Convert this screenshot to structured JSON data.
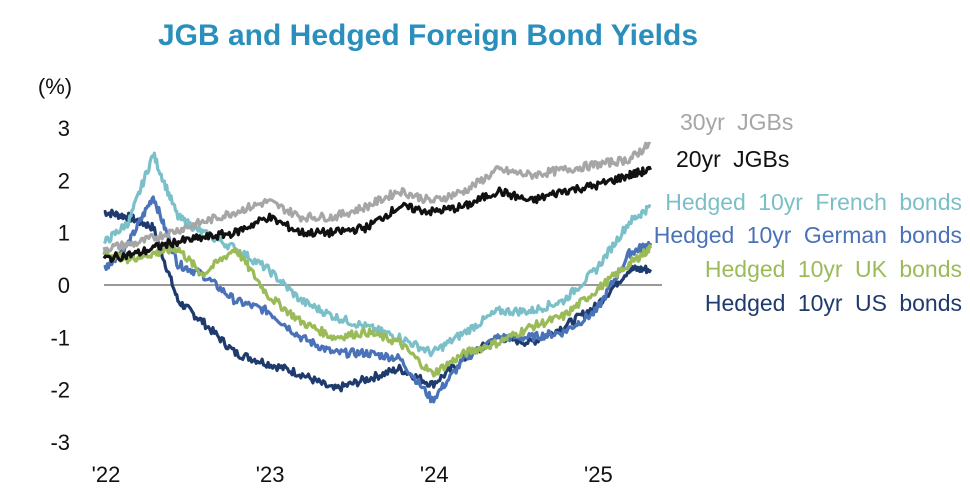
{
  "chart_data": {
    "type": "line",
    "title": "JGB and Hedged Foreign Bond Yields",
    "ylabel": "(%)",
    "ylim": [
      -3,
      3
    ],
    "yticks": [
      "3",
      "2",
      "1",
      "0",
      "-1",
      "-2",
      "-3"
    ],
    "xticks": [
      "'22",
      "'23",
      "'24",
      "'25"
    ],
    "xlim": [
      2022.0,
      2025.4
    ],
    "zero_line": true,
    "legend": "direct labels at right end of lines",
    "colors": {
      "title": "#2a8fbd",
      "zero_line": "#999999"
    },
    "series": [
      {
        "name": "30yr JGBs",
        "color": "#a6a6a6",
        "x": [
          2022.0,
          2022.2,
          2022.4,
          2022.6,
          2022.8,
          2023.0,
          2023.2,
          2023.4,
          2023.6,
          2023.8,
          2024.0,
          2024.2,
          2024.4,
          2024.6,
          2024.8,
          2025.0,
          2025.2,
          2025.33
        ],
        "values": [
          0.7,
          0.8,
          1.0,
          1.2,
          1.4,
          1.6,
          1.3,
          1.3,
          1.5,
          1.8,
          1.6,
          1.8,
          2.2,
          2.1,
          2.2,
          2.3,
          2.4,
          2.7
        ]
      },
      {
        "name": "20yr JGBs",
        "color": "#111111",
        "x": [
          2022.0,
          2022.2,
          2022.4,
          2022.6,
          2022.8,
          2023.0,
          2023.2,
          2023.4,
          2023.6,
          2023.8,
          2024.0,
          2024.2,
          2024.4,
          2024.6,
          2024.8,
          2025.0,
          2025.2,
          2025.33
        ],
        "values": [
          0.5,
          0.6,
          0.8,
          0.9,
          1.0,
          1.3,
          1.0,
          1.0,
          1.1,
          1.5,
          1.4,
          1.5,
          1.8,
          1.6,
          1.8,
          1.9,
          2.1,
          2.2
        ]
      },
      {
        "name": "Hedged 10yr French bonds",
        "color": "#7bbfc8",
        "x": [
          2022.0,
          2022.15,
          2022.3,
          2022.45,
          2022.6,
          2022.8,
          2023.0,
          2023.2,
          2023.4,
          2023.6,
          2023.8,
          2024.0,
          2024.2,
          2024.4,
          2024.6,
          2024.8,
          2025.0,
          2025.2,
          2025.33
        ],
        "values": [
          0.8,
          1.2,
          2.5,
          1.3,
          1.0,
          0.7,
          0.3,
          -0.3,
          -0.6,
          -0.8,
          -1.0,
          -1.3,
          -0.9,
          -0.5,
          -0.5,
          -0.3,
          0.3,
          1.2,
          1.5
        ]
      },
      {
        "name": "Hedged 10yr German bonds",
        "color": "#4a72b8",
        "x": [
          2022.0,
          2022.15,
          2022.3,
          2022.45,
          2022.6,
          2022.8,
          2023.0,
          2023.2,
          2023.4,
          2023.6,
          2023.8,
          2024.0,
          2024.2,
          2024.4,
          2024.6,
          2024.8,
          2025.0,
          2025.2,
          2025.33
        ],
        "values": [
          0.3,
          0.8,
          1.7,
          0.4,
          0.2,
          -0.3,
          -0.5,
          -1.0,
          -1.3,
          -1.3,
          -1.4,
          -2.2,
          -1.4,
          -1.0,
          -1.0,
          -0.9,
          -0.5,
          0.6,
          0.8
        ]
      },
      {
        "name": "Hedged 10yr UK bonds",
        "color": "#9bbb59",
        "x": [
          2022.0,
          2022.15,
          2022.3,
          2022.45,
          2022.6,
          2022.8,
          2023.0,
          2023.2,
          2023.4,
          2023.6,
          2023.8,
          2024.0,
          2024.2,
          2024.4,
          2024.6,
          2024.8,
          2025.0,
          2025.2,
          2025.33
        ],
        "values": [
          0.6,
          0.5,
          0.6,
          0.7,
          0.2,
          0.7,
          -0.2,
          -0.7,
          -1.0,
          -0.9,
          -1.1,
          -1.7,
          -1.3,
          -1.1,
          -0.8,
          -0.6,
          -0.1,
          0.4,
          0.7
        ]
      },
      {
        "name": "Hedged 10yr US bonds",
        "color": "#1f3b6e",
        "x": [
          2022.0,
          2022.15,
          2022.3,
          2022.45,
          2022.6,
          2022.8,
          2023.0,
          2023.2,
          2023.4,
          2023.6,
          2023.8,
          2024.0,
          2024.2,
          2024.4,
          2024.6,
          2024.8,
          2025.0,
          2025.2,
          2025.33
        ],
        "values": [
          1.4,
          1.3,
          1.1,
          -0.3,
          -0.7,
          -1.3,
          -1.5,
          -1.7,
          -2.0,
          -1.8,
          -1.6,
          -1.9,
          -1.4,
          -1.0,
          -1.1,
          -0.8,
          -0.4,
          0.3,
          0.3
        ]
      }
    ]
  }
}
